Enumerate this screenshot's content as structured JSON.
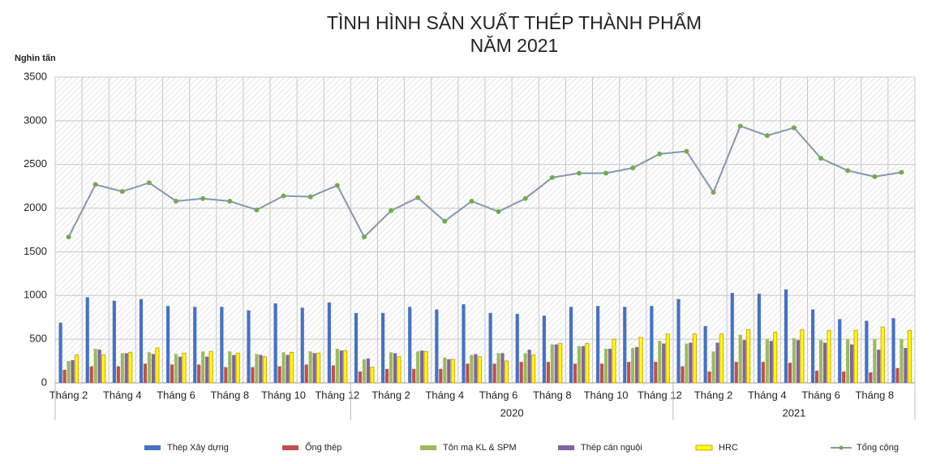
{
  "chart_data": {
    "type": "bar",
    "title": [
      "TÌNH HÌNH SẢN XUẤT THÉP THÀNH PHẨM",
      "NĂM 2021"
    ],
    "y_label": "Nghìn tấn",
    "categories": [
      "Tháng 2",
      null,
      "Tháng 4",
      null,
      "Tháng 6",
      null,
      "Tháng 8",
      null,
      "Tháng 10",
      null,
      "Tháng 12",
      null,
      "Tháng 2",
      null,
      "Tháng 4",
      null,
      "Tháng 6",
      null,
      "Tháng 8",
      null,
      "Tháng 10",
      null,
      "Tháng 12",
      null,
      "Tháng 2",
      null,
      "Tháng 4",
      null,
      "Tháng 6",
      null,
      "Tháng 8",
      null
    ],
    "groups": [
      {
        "size": 11
      },
      {
        "label": "2020",
        "size": 12
      },
      {
        "label": "2021",
        "size": 9
      }
    ],
    "ylim": [
      0,
      3500
    ],
    "yticks": [
      0,
      500,
      1000,
      1500,
      2000,
      2500,
      3000,
      3500
    ],
    "grid": true,
    "legend": "bottom",
    "series": [
      {
        "name": "Thép Xây dựng",
        "type": "bar",
        "color": "#4472c4",
        "values": [
          690,
          980,
          940,
          960,
          880,
          870,
          870,
          830,
          910,
          860,
          920,
          800,
          800,
          870,
          840,
          900,
          800,
          790,
          770,
          870,
          880,
          870,
          880,
          960,
          650,
          1030,
          1020,
          1070,
          840,
          730,
          710,
          740
        ]
      },
      {
        "name": "Ống thép",
        "type": "bar",
        "color": "#c0504d",
        "values": [
          150,
          190,
          190,
          220,
          210,
          210,
          180,
          180,
          190,
          210,
          200,
          130,
          160,
          160,
          160,
          220,
          220,
          240,
          240,
          220,
          220,
          240,
          240,
          190,
          130,
          240,
          240,
          230,
          140,
          130,
          120,
          170
        ]
      },
      {
        "name": "Tôn mạ KL & SPM",
        "type": "bar",
        "color": "#9bbb59",
        "values": [
          250,
          390,
          340,
          350,
          330,
          360,
          360,
          330,
          350,
          360,
          390,
          270,
          350,
          360,
          290,
          320,
          340,
          340,
          440,
          420,
          390,
          400,
          480,
          450,
          360,
          550,
          500,
          510,
          490,
          500,
          500,
          500
        ]
      },
      {
        "name": "Thép cán nguội",
        "type": "bar",
        "color": "#8064a2",
        "values": [
          260,
          380,
          340,
          330,
          300,
          300,
          320,
          320,
          320,
          340,
          370,
          280,
          340,
          370,
          270,
          330,
          340,
          380,
          440,
          420,
          390,
          410,
          450,
          460,
          460,
          490,
          480,
          490,
          460,
          440,
          380,
          400
        ]
      },
      {
        "name": "HRC",
        "type": "bar",
        "color": "#ffff00",
        "edge_color": "#d4a017",
        "values": [
          320,
          320,
          350,
          400,
          340,
          360,
          340,
          300,
          350,
          340,
          370,
          180,
          300,
          360,
          270,
          300,
          250,
          320,
          450,
          450,
          500,
          520,
          560,
          560,
          560,
          610,
          580,
          610,
          600,
          600,
          640,
          600
        ]
      },
      {
        "name": "Tổng cộng",
        "type": "line",
        "color": "#8497b0",
        "marker_color": "#70ad47",
        "values": [
          1670,
          2270,
          2190,
          2290,
          2080,
          2110,
          2080,
          1980,
          2140,
          2130,
          2260,
          1670,
          1970,
          2120,
          1850,
          2080,
          1960,
          2110,
          2350,
          2400,
          2400,
          2460,
          2620,
          2650,
          2180,
          2940,
          2830,
          2920,
          2570,
          2430,
          2360,
          2410
        ]
      }
    ]
  }
}
